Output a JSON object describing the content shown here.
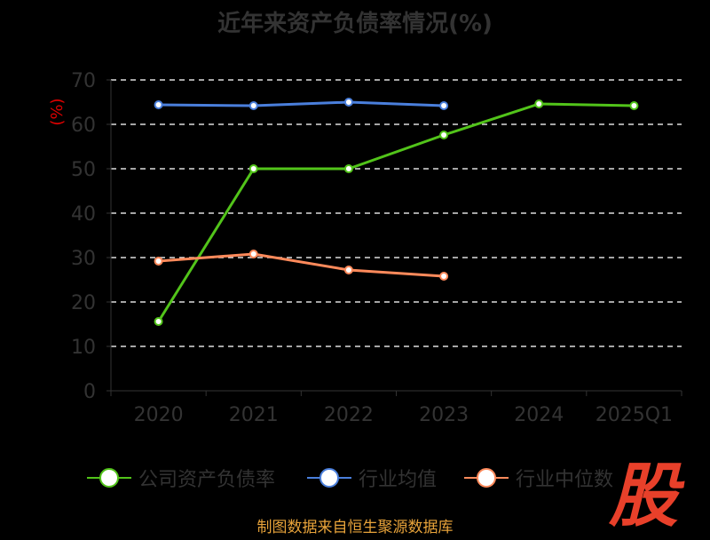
{
  "chart_data": {
    "type": "line",
    "title": "近年来资产负债率情况(%)",
    "ylabel": "(%)",
    "categories": [
      "2020",
      "2021",
      "2022",
      "2023",
      "2024",
      "2025Q1"
    ],
    "ylim": [
      0,
      70
    ],
    "yticks": [
      0,
      10,
      20,
      30,
      40,
      50,
      60,
      70
    ],
    "grid": true,
    "legend_position": "bottom",
    "series": [
      {
        "name": "公司资产负债率",
        "color": "#52c41a",
        "values": [
          15.6,
          50.0,
          50.0,
          57.6,
          64.6,
          64.2
        ]
      },
      {
        "name": "行业均值",
        "color": "#4a7fdc",
        "values": [
          64.4,
          64.2,
          65.0,
          64.2,
          null,
          null
        ]
      },
      {
        "name": "行业中位数",
        "color": "#ff8a5b",
        "values": [
          29.2,
          30.8,
          27.2,
          25.8,
          null,
          null
        ]
      }
    ]
  },
  "source": "制图数据来自恒生聚源数据库",
  "logo_text": "股"
}
